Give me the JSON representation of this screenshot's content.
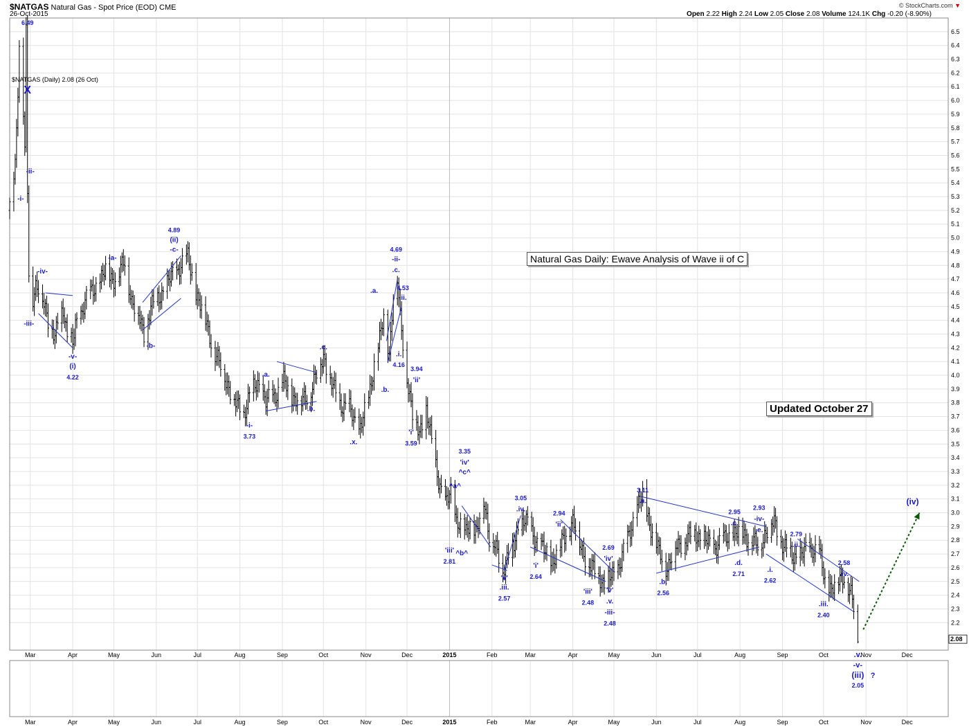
{
  "header": {
    "symbol": "$NATGAS",
    "name": "Natural Gas - Spot Price (EOD)",
    "exchange": "CME",
    "date": "26-Oct-2015",
    "open_label": "Open",
    "open": "2.22",
    "high_label": "High",
    "high": "2.24",
    "low_label": "Low",
    "low": "2.05",
    "close_label": "Close",
    "close": "2.08",
    "volume_label": "Volume",
    "volume": "124.1K",
    "chg_label": "Chg",
    "chg": "-0.20 (-8.90%)",
    "credit": "© StockCharts.com"
  },
  "legend": "$NATGAS (Daily) 2.08 (26 Oct)",
  "title_box": "Natural Gas Daily: Ewave Analysis of Wave ii of C",
  "updated_box": "Updated October 27",
  "chart_data": {
    "type": "bar",
    "style": "ohlc",
    "x_range": [
      "2014-02-14",
      "2015-12-31"
    ],
    "ylim": [
      2.0,
      6.6
    ],
    "y_axis_position": "right",
    "y_ticks": [
      2.2,
      2.3,
      2.4,
      2.5,
      2.6,
      2.7,
      2.8,
      2.9,
      3.0,
      3.1,
      3.2,
      3.3,
      3.4,
      3.5,
      3.6,
      3.7,
      3.8,
      3.9,
      4.0,
      4.1,
      4.2,
      4.3,
      4.4,
      4.5,
      4.6,
      4.7,
      4.8,
      4.9,
      5.0,
      5.1,
      5.2,
      5.3,
      5.4,
      5.5,
      5.6,
      5.7,
      5.8,
      5.9,
      6.0,
      6.1,
      6.2,
      6.3,
      6.4,
      6.5
    ],
    "last_price_label": "2.08",
    "month_ticks": [
      {
        "date": "2014-03-01",
        "label": "Mar"
      },
      {
        "date": "2014-04-01",
        "label": "Apr"
      },
      {
        "date": "2014-05-01",
        "label": "May"
      },
      {
        "date": "2014-06-01",
        "label": "Jun"
      },
      {
        "date": "2014-07-01",
        "label": "Jul"
      },
      {
        "date": "2014-08-01",
        "label": "Aug"
      },
      {
        "date": "2014-09-01",
        "label": "Sep"
      },
      {
        "date": "2014-10-01",
        "label": "Oct"
      },
      {
        "date": "2014-11-01",
        "label": "Nov"
      },
      {
        "date": "2014-12-01",
        "label": "Dec"
      },
      {
        "date": "2015-01-01",
        "label": "2015"
      },
      {
        "date": "2015-02-01",
        "label": "Feb"
      },
      {
        "date": "2015-03-01",
        "label": "Mar"
      },
      {
        "date": "2015-04-01",
        "label": "Apr"
      },
      {
        "date": "2015-05-01",
        "label": "May"
      },
      {
        "date": "2015-06-01",
        "label": "Jun"
      },
      {
        "date": "2015-07-01",
        "label": "Jul"
      },
      {
        "date": "2015-08-01",
        "label": "Aug"
      },
      {
        "date": "2015-09-01",
        "label": "Sep"
      },
      {
        "date": "2015-10-01",
        "label": "Oct"
      },
      {
        "date": "2015-11-01",
        "label": "Nov"
      },
      {
        "date": "2015-12-01",
        "label": "Dec"
      }
    ],
    "series": [
      {
        "x": [
          "2014-02-14",
          "2014-02-18",
          "2014-02-20",
          "2014-02-21",
          "2014-02-24",
          "2014-02-25",
          "2014-02-26",
          "2014-02-27",
          "2014-02-28",
          "2014-03-03",
          "2014-03-05",
          "2014-03-07",
          "2014-03-10",
          "2014-03-14",
          "2014-03-17",
          "2014-03-19",
          "2014-03-21",
          "2014-03-25",
          "2014-03-28",
          "2014-04-01",
          "2014-04-03",
          "2014-04-07",
          "2014-04-10",
          "2014-04-15",
          "2014-04-21",
          "2014-04-25",
          "2014-04-30",
          "2014-05-05",
          "2014-05-09",
          "2014-05-14",
          "2014-05-20",
          "2014-05-23",
          "2014-05-28",
          "2014-06-02",
          "2014-06-06",
          "2014-06-11",
          "2014-06-16",
          "2014-06-19",
          "2014-06-24",
          "2014-06-30",
          "2014-07-07",
          "2014-07-14",
          "2014-07-21",
          "2014-07-28",
          "2014-08-04",
          "2014-08-08",
          "2014-08-14",
          "2014-08-20",
          "2014-08-26",
          "2014-09-02",
          "2014-09-08",
          "2014-09-15",
          "2014-09-22",
          "2014-09-26",
          "2014-10-01",
          "2014-10-06",
          "2014-10-13",
          "2014-10-20",
          "2014-10-27",
          "2014-11-03",
          "2014-11-07",
          "2014-11-12",
          "2014-11-14",
          "2014-11-18",
          "2014-11-21",
          "2014-11-24",
          "2014-11-26",
          "2014-12-01",
          "2014-12-05",
          "2014-12-10",
          "2014-12-15",
          "2014-12-19",
          "2014-12-24",
          "2014-12-29",
          "2015-01-02",
          "2015-01-06",
          "2015-01-09",
          "2015-01-13",
          "2015-01-16",
          "2015-01-21",
          "2015-01-26",
          "2015-01-30",
          "2015-02-04",
          "2015-02-09",
          "2015-02-13",
          "2015-02-17",
          "2015-02-20",
          "2015-02-25",
          "2015-03-02",
          "2015-03-09",
          "2015-03-16",
          "2015-03-23",
          "2015-03-27",
          "2015-04-01",
          "2015-04-07",
          "2015-04-14",
          "2015-04-20",
          "2015-04-24",
          "2015-04-28",
          "2015-05-04",
          "2015-05-11",
          "2015-05-18",
          "2015-05-22",
          "2015-05-28",
          "2015-06-03",
          "2015-06-09",
          "2015-06-15",
          "2015-06-22",
          "2015-06-29",
          "2015-07-06",
          "2015-07-13",
          "2015-07-20",
          "2015-07-27",
          "2015-08-03",
          "2015-08-10",
          "2015-08-14",
          "2015-08-19",
          "2015-08-26",
          "2015-09-02",
          "2015-09-09",
          "2015-09-16",
          "2015-09-23",
          "2015-09-28",
          "2015-10-02",
          "2015-10-07",
          "2015-10-12",
          "2015-10-16",
          "2015-10-21",
          "2015-10-23",
          "2015-10-26"
        ],
        "close": [
          5.2,
          5.55,
          6.1,
          6.4,
          5.9,
          5.6,
          6.49,
          5.35,
          4.75,
          4.58,
          4.65,
          4.62,
          4.55,
          4.42,
          4.35,
          4.25,
          4.38,
          4.5,
          4.3,
          4.22,
          4.35,
          4.45,
          4.55,
          4.6,
          4.7,
          4.76,
          4.7,
          4.75,
          4.82,
          4.55,
          4.4,
          4.3,
          4.5,
          4.55,
          4.62,
          4.7,
          4.75,
          4.82,
          4.85,
          4.6,
          4.4,
          4.15,
          4.0,
          3.8,
          3.73,
          3.85,
          3.95,
          3.8,
          3.85,
          3.95,
          3.85,
          3.8,
          3.9,
          4.0,
          4.15,
          3.95,
          3.8,
          3.75,
          3.6,
          3.82,
          4.1,
          4.3,
          4.42,
          4.16,
          4.6,
          4.69,
          4.4,
          4.0,
          3.7,
          3.59,
          3.75,
          3.5,
          3.25,
          3.05,
          3.15,
          2.95,
          2.9,
          2.85,
          2.95,
          2.85,
          3.1,
          2.85,
          2.72,
          2.6,
          2.7,
          2.75,
          2.9,
          2.95,
          2.85,
          2.75,
          2.64,
          2.75,
          2.85,
          2.94,
          2.75,
          2.6,
          2.55,
          2.48,
          2.52,
          2.6,
          2.8,
          3.05,
          3.11,
          2.9,
          2.7,
          2.6,
          2.75,
          2.8,
          2.85,
          2.8,
          2.75,
          2.8,
          2.85,
          2.85,
          2.8,
          2.75,
          2.85,
          2.93,
          2.75,
          2.68,
          2.7,
          2.75,
          2.7,
          2.5,
          2.45,
          2.5,
          2.55,
          2.4,
          2.3,
          2.08
        ]
      }
    ],
    "annotations": [
      {
        "date": "2014-02-27",
        "price": 6.55,
        "text": "6.49"
      },
      {
        "date": "2014-02-27",
        "price": 6.05,
        "text": "X"
      },
      {
        "date": "2014-02-22",
        "price": 5.27,
        "text": "-i-"
      },
      {
        "date": "2014-03-01",
        "price": 5.47,
        "text": "-ii-"
      },
      {
        "date": "2014-03-10",
        "price": 4.74,
        "text": "-iv-"
      },
      {
        "date": "2014-02-28",
        "price": 4.36,
        "text": "-iii-"
      },
      {
        "date": "2014-04-01",
        "price": 4.12,
        "text": "-v-"
      },
      {
        "date": "2014-04-01",
        "price": 4.05,
        "text": "(i)"
      },
      {
        "date": "2014-04-01",
        "price": 3.97,
        "text": "4.22"
      },
      {
        "date": "2014-04-30",
        "price": 4.84,
        "text": "-a-"
      },
      {
        "date": "2014-05-28",
        "price": 4.2,
        "text": "-b-"
      },
      {
        "date": "2014-06-14",
        "price": 5.04,
        "text": "4.89"
      },
      {
        "date": "2014-06-14",
        "price": 4.97,
        "text": "(ii)"
      },
      {
        "date": "2014-06-14",
        "price": 4.9,
        "text": "-c-"
      },
      {
        "date": "2014-08-08",
        "price": 3.62,
        "text": "-i-"
      },
      {
        "date": "2014-08-08",
        "price": 3.54,
        "text": "3.73"
      },
      {
        "date": "2014-08-20",
        "price": 3.99,
        "text": ".a."
      },
      {
        "date": "2014-09-22",
        "price": 3.74,
        "text": ".b."
      },
      {
        "date": "2014-10-01",
        "price": 4.19,
        "text": ".c."
      },
      {
        "date": "2014-10-23",
        "price": 3.5,
        "text": ".x."
      },
      {
        "date": "2014-11-07",
        "price": 4.6,
        "text": ".a."
      },
      {
        "date": "2014-11-15",
        "price": 3.88,
        "text": ".b."
      },
      {
        "date": "2014-11-23",
        "price": 4.9,
        "text": "4.69"
      },
      {
        "date": "2014-11-23",
        "price": 4.83,
        "text": "-ii-"
      },
      {
        "date": "2014-11-23",
        "price": 4.75,
        "text": ".c."
      },
      {
        "date": "2014-11-28",
        "price": 4.62,
        "text": "4.53"
      },
      {
        "date": "2014-11-28",
        "price": 4.55,
        "text": ".ii."
      },
      {
        "date": "2014-11-25",
        "price": 4.14,
        "text": ".i."
      },
      {
        "date": "2014-11-25",
        "price": 4.06,
        "text": "4.16"
      },
      {
        "date": "2014-12-08",
        "price": 4.03,
        "text": "3.94"
      },
      {
        "date": "2014-12-08",
        "price": 3.95,
        "text": "'ii'"
      },
      {
        "date": "2014-12-04",
        "price": 3.57,
        "text": "'i'"
      },
      {
        "date": "2014-12-04",
        "price": 3.49,
        "text": "3.59"
      },
      {
        "date": "2015-01-12",
        "price": 3.43,
        "text": "3.35"
      },
      {
        "date": "2015-01-12",
        "price": 3.35,
        "text": "'iv'"
      },
      {
        "date": "2015-01-12",
        "price": 3.28,
        "text": "^c^"
      },
      {
        "date": "2015-01-05",
        "price": 3.18,
        "text": "^a^"
      },
      {
        "date": "2015-01-10",
        "price": 2.69,
        "text": "^b^"
      },
      {
        "date": "2015-01-01",
        "price": 2.71,
        "text": "'iii'"
      },
      {
        "date": "2015-01-01",
        "price": 2.63,
        "text": "2.81"
      },
      {
        "date": "2015-02-10",
        "price": 2.51,
        "text": "'v'"
      },
      {
        "date": "2015-02-10",
        "price": 2.44,
        "text": ".iii."
      },
      {
        "date": "2015-02-10",
        "price": 2.36,
        "text": "2.57"
      },
      {
        "date": "2015-02-22",
        "price": 3.09,
        "text": "3.05"
      },
      {
        "date": "2015-02-22",
        "price": 3.01,
        "text": ".iv."
      },
      {
        "date": "2015-03-05",
        "price": 2.6,
        "text": "'i'"
      },
      {
        "date": "2015-03-05",
        "price": 2.52,
        "text": "2.64"
      },
      {
        "date": "2015-03-22",
        "price": 2.98,
        "text": "2.94"
      },
      {
        "date": "2015-03-22",
        "price": 2.9,
        "text": "'ii'"
      },
      {
        "date": "2015-04-12",
        "price": 2.41,
        "text": "'iii'"
      },
      {
        "date": "2015-04-12",
        "price": 2.33,
        "text": "2.48"
      },
      {
        "date": "2015-04-27",
        "price": 2.73,
        "text": "2.69"
      },
      {
        "date": "2015-04-27",
        "price": 2.65,
        "text": "'iv'"
      },
      {
        "date": "2015-04-28",
        "price": 2.42,
        "text": "'v'"
      },
      {
        "date": "2015-04-28",
        "price": 2.34,
        "text": ".v."
      },
      {
        "date": "2015-04-28",
        "price": 2.26,
        "text": "-iii-"
      },
      {
        "date": "2015-04-28",
        "price": 2.18,
        "text": "2.48"
      },
      {
        "date": "2015-05-22",
        "price": 3.15,
        "text": "3.11"
      },
      {
        "date": "2015-05-22",
        "price": 3.07,
        "text": ".a."
      },
      {
        "date": "2015-06-06",
        "price": 2.48,
        "text": ".b."
      },
      {
        "date": "2015-06-06",
        "price": 2.4,
        "text": "2.56"
      },
      {
        "date": "2015-07-28",
        "price": 2.99,
        "text": "2.95"
      },
      {
        "date": "2015-07-28",
        "price": 2.91,
        "text": ".c."
      },
      {
        "date": "2015-08-15",
        "price": 3.02,
        "text": "2.93"
      },
      {
        "date": "2015-08-15",
        "price": 2.94,
        "text": "-iv-"
      },
      {
        "date": "2015-08-15",
        "price": 2.86,
        "text": ".e."
      },
      {
        "date": "2015-07-31",
        "price": 2.62,
        "text": ".d."
      },
      {
        "date": "2015-07-31",
        "price": 2.54,
        "text": "2.71"
      },
      {
        "date": "2015-08-23",
        "price": 2.57,
        "text": ".i."
      },
      {
        "date": "2015-08-23",
        "price": 2.49,
        "text": "2.62"
      },
      {
        "date": "2015-09-11",
        "price": 2.83,
        "text": "2.79"
      },
      {
        "date": "2015-09-11",
        "price": 2.75,
        "text": ".ii."
      },
      {
        "date": "2015-10-01",
        "price": 2.32,
        "text": ".iii."
      },
      {
        "date": "2015-10-01",
        "price": 2.24,
        "text": "2.40"
      },
      {
        "date": "2015-10-16",
        "price": 2.62,
        "text": "2.58"
      },
      {
        "date": "2015-10-16",
        "price": 2.54,
        "text": ".iv."
      }
    ],
    "below_annotations": [
      {
        "date": "2015-10-26",
        "text": ".v."
      },
      {
        "date": "2015-10-26",
        "text": "-v-"
      },
      {
        "date": "2015-10-26",
        "text": "(iii)"
      },
      {
        "date": "2015-11-06",
        "text": "?"
      },
      {
        "date": "2015-10-26",
        "text": "2.05"
      }
    ],
    "forecast_label": {
      "date": "2015-12-05",
      "price": 3.06,
      "text": "(iv)"
    },
    "forecast_arrow": {
      "from": {
        "date": "2015-10-30",
        "price": 2.15
      },
      "to": {
        "date": "2015-12-10",
        "price": 3.0
      }
    },
    "trendlines": [
      {
        "from": {
          "date": "2014-03-07",
          "price": 4.45
        },
        "to": {
          "date": "2014-04-01",
          "price": 4.2
        }
      },
      {
        "from": {
          "date": "2014-03-12",
          "price": 4.6
        },
        "to": {
          "date": "2014-04-01",
          "price": 4.58
        }
      },
      {
        "from": {
          "date": "2014-05-22",
          "price": 4.33
        },
        "to": {
          "date": "2014-06-19",
          "price": 4.56
        }
      },
      {
        "from": {
          "date": "2014-05-22",
          "price": 4.53
        },
        "to": {
          "date": "2014-06-19",
          "price": 4.87
        }
      },
      {
        "from": {
          "date": "2014-08-20",
          "price": 3.74
        },
        "to": {
          "date": "2014-09-26",
          "price": 3.81
        }
      },
      {
        "from": {
          "date": "2014-08-28",
          "price": 4.1
        },
        "to": {
          "date": "2014-09-26",
          "price": 4.02
        }
      },
      {
        "from": {
          "date": "2014-11-16",
          "price": 4.25
        },
        "to": {
          "date": "2014-11-24",
          "price": 4.7
        }
      },
      {
        "from": {
          "date": "2014-11-17",
          "price": 4.1
        },
        "to": {
          "date": "2014-11-27",
          "price": 4.5
        }
      },
      {
        "from": {
          "date": "2015-01-10",
          "price": 3.05
        },
        "to": {
          "date": "2015-01-31",
          "price": 2.75
        }
      },
      {
        "from": {
          "date": "2015-02-01",
          "price": 2.62
        },
        "to": {
          "date": "2015-02-12",
          "price": 2.58
        }
      },
      {
        "from": {
          "date": "2015-02-10",
          "price": 2.58
        },
        "to": {
          "date": "2015-02-22",
          "price": 2.98
        }
      },
      {
        "from": {
          "date": "2015-03-01",
          "price": 2.75
        },
        "to": {
          "date": "2015-04-25",
          "price": 2.5
        }
      },
      {
        "from": {
          "date": "2015-03-23",
          "price": 2.95
        },
        "to": {
          "date": "2015-05-01",
          "price": 2.57
        }
      },
      {
        "from": {
          "date": "2015-05-20",
          "price": 3.12
        },
        "to": {
          "date": "2015-08-20",
          "price": 2.9
        }
      },
      {
        "from": {
          "date": "2015-06-01",
          "price": 2.56
        },
        "to": {
          "date": "2015-08-15",
          "price": 2.75
        }
      },
      {
        "from": {
          "date": "2015-08-20",
          "price": 2.7
        },
        "to": {
          "date": "2015-10-23",
          "price": 2.28
        }
      },
      {
        "from": {
          "date": "2015-09-12",
          "price": 2.81
        },
        "to": {
          "date": "2015-10-27",
          "price": 2.5
        }
      }
    ]
  }
}
